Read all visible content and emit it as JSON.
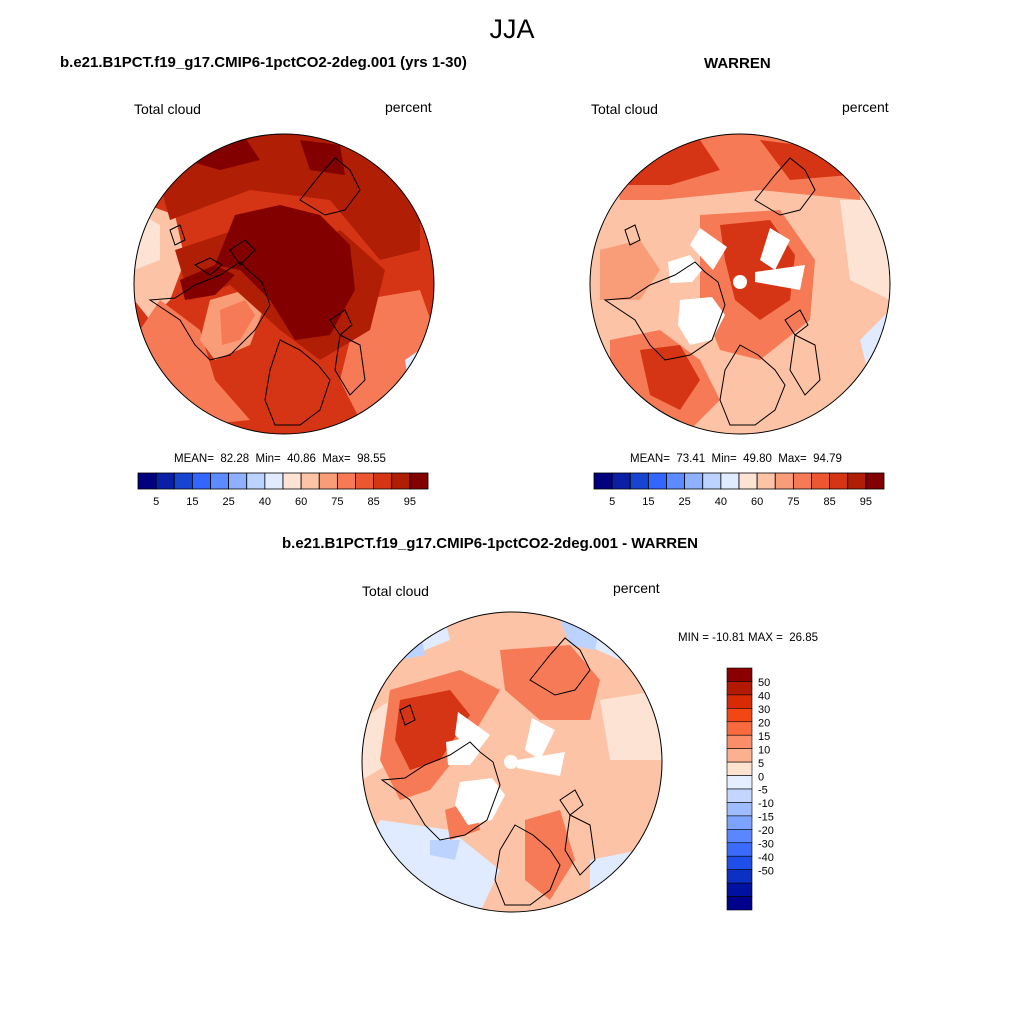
{
  "figure": {
    "season_title": "JJA"
  },
  "panels": [
    {
      "title": "b.e21.B1PCT.f19_g17.CMIP6-1pctCO2-2deg.001 (yrs 1-30)",
      "left_label": "Total cloud",
      "right_label": "percent",
      "stats": "MEAN=  82.28  Min=  40.86  Max=  98.55"
    },
    {
      "title": "WARREN",
      "left_label": "Total cloud",
      "right_label": "percent",
      "stats": "MEAN=  73.41  Min=  49.80  Max=  94.79"
    },
    {
      "title": "b.e21.B1PCT.f19_g17.CMIP6-1pctCO2-2deg.001 - WARREN",
      "left_label": "Total cloud",
      "right_label": "percent",
      "stats": "MIN = -10.81 MAX =  26.85"
    }
  ],
  "colorbar_abs": {
    "colors": [
      "#00007f",
      "#0a1fa6",
      "#1744d0",
      "#3366ff",
      "#5b8bff",
      "#8fb0ff",
      "#bcd2ff",
      "#e0ebff",
      "#fde3d4",
      "#fcc3a6",
      "#f99d78",
      "#f57a55",
      "#ec5630",
      "#d53514",
      "#b01e06",
      "#830000"
    ],
    "tick_labels": [
      "5",
      "15",
      "25",
      "40",
      "60",
      "75",
      "85",
      "95"
    ]
  },
  "colorbar_diff": {
    "colors": [
      "#8a0000",
      "#b31800",
      "#d82a04",
      "#f24614",
      "#f96a3e",
      "#fa8e68",
      "#fbb090",
      "#fde2d0",
      "#e4eeff",
      "#c3d6ff",
      "#9fbcff",
      "#7ea3ff",
      "#5a87ff",
      "#3a6bfa",
      "#1f4ee8",
      "#0c2fc4",
      "#0010a0",
      "#00008a"
    ],
    "tick_labels": [
      "50",
      "40",
      "30",
      "20",
      "15",
      "10",
      "5",
      "0",
      "-5",
      "-10",
      "-15",
      "-20",
      "-30",
      "-40",
      "-50"
    ]
  },
  "map_colors": {
    "ocean_dark": "#830000",
    "ocean_high": "#b01e06",
    "mid_red": "#d53514",
    "light_red": "#f57a55",
    "salmon": "#f99d78",
    "peach": "#fcc3a6",
    "cream": "#fde3d4",
    "pale_blue": "#e0ebff",
    "blue_light": "#bcd2ff",
    "missing": "#ffffff"
  }
}
